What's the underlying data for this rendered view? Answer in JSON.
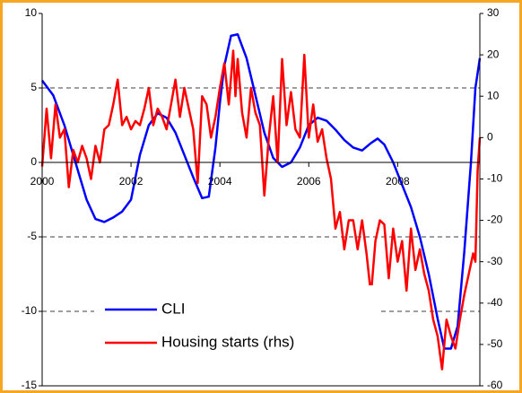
{
  "chart_data": {
    "type": "line",
    "xlim": [
      2000,
      2009.85
    ],
    "xticks": [
      2000,
      2002,
      2004,
      2006,
      2008
    ],
    "ylim": [
      -15,
      10
    ],
    "yticks": [
      -15,
      -10,
      -5,
      0,
      5,
      10
    ],
    "y2lim": [
      -60,
      30
    ],
    "y2ticks": [
      -60,
      -50,
      -40,
      -30,
      -20,
      -10,
      0,
      10,
      20,
      30
    ],
    "grid": true,
    "legend": "lower left",
    "series": [
      {
        "name": "CLI",
        "color": "#0000ff",
        "axis": "y",
        "x": [
          2000.0,
          2000.25,
          2000.5,
          2000.75,
          2001.0,
          2001.2,
          2001.4,
          2001.6,
          2001.8,
          2002.0,
          2002.2,
          2002.4,
          2002.6,
          2002.8,
          2003.0,
          2003.2,
          2003.4,
          2003.6,
          2003.75,
          2003.9,
          2004.0,
          2004.1,
          2004.25,
          2004.4,
          2004.6,
          2004.8,
          2005.0,
          2005.2,
          2005.4,
          2005.6,
          2005.8,
          2006.0,
          2006.2,
          2006.4,
          2006.6,
          2006.8,
          2007.0,
          2007.2,
          2007.4,
          2007.55,
          2007.7,
          2007.9,
          2008.1,
          2008.3,
          2008.5,
          2008.7,
          2008.9,
          2009.05,
          2009.2,
          2009.35,
          2009.5,
          2009.65,
          2009.75,
          2009.85
        ],
        "values": [
          5.5,
          4.5,
          2.5,
          0,
          -2.5,
          -3.8,
          -4,
          -3.7,
          -3.3,
          -2.5,
          0.5,
          2.5,
          3.3,
          3,
          2,
          0.5,
          -1,
          -2.4,
          -2.3,
          1,
          4,
          6.5,
          8.5,
          8.6,
          7,
          4.5,
          2,
          0.3,
          -0.3,
          0,
          1,
          2.5,
          3,
          2.8,
          2.2,
          1.5,
          1,
          0.8,
          1.3,
          1.6,
          1.2,
          0,
          -1.5,
          -3,
          -5,
          -7.5,
          -10.5,
          -12.5,
          -12.5,
          -11,
          -6,
          0,
          5,
          7
        ]
      },
      {
        "name": "Housing starts (rhs)",
        "color": "#ff0000",
        "axis": "y2",
        "x": [
          2000.0,
          2000.1,
          2000.2,
          2000.3,
          2000.4,
          2000.5,
          2000.6,
          2000.7,
          2000.8,
          2000.9,
          2001.0,
          2001.1,
          2001.2,
          2001.3,
          2001.4,
          2001.5,
          2001.6,
          2001.7,
          2001.8,
          2001.9,
          2002.0,
          2002.1,
          2002.2,
          2002.3,
          2002.4,
          2002.5,
          2002.6,
          2002.7,
          2002.8,
          2002.9,
          2003.0,
          2003.1,
          2003.2,
          2003.3,
          2003.4,
          2003.5,
          2003.6,
          2003.7,
          2003.8,
          2003.9,
          2004.0,
          2004.1,
          2004.2,
          2004.3,
          2004.35,
          2004.4,
          2004.5,
          2004.6,
          2004.7,
          2004.8,
          2004.9,
          2005.0,
          2005.1,
          2005.2,
          2005.3,
          2005.4,
          2005.5,
          2005.6,
          2005.7,
          2005.8,
          2005.9,
          2006.0,
          2006.1,
          2006.2,
          2006.3,
          2006.4,
          2006.5,
          2006.6,
          2006.7,
          2006.8,
          2006.9,
          2007.0,
          2007.1,
          2007.2,
          2007.3,
          2007.4,
          2007.5,
          2007.6,
          2007.7,
          2007.8,
          2007.9,
          2008.0,
          2008.1,
          2008.2,
          2008.3,
          2008.4,
          2008.5,
          2008.6,
          2008.7,
          2008.8,
          2008.9,
          2009.0,
          2009.1,
          2009.2,
          2009.3,
          2009.4,
          2009.5,
          2009.6,
          2009.7,
          2009.75,
          2009.8,
          2009.85
        ],
        "values": [
          -7,
          7,
          -5,
          8,
          0,
          2,
          -12,
          -3,
          -6,
          -2,
          -5,
          -10,
          -2,
          -6,
          2,
          3,
          8,
          14,
          3,
          5,
          2,
          4,
          3,
          7,
          12,
          3,
          7,
          5,
          2,
          8,
          14,
          5,
          12,
          7,
          2,
          -11,
          10,
          8,
          0,
          5,
          12,
          18,
          8,
          21,
          10,
          19,
          6,
          0,
          12,
          6,
          3,
          -14,
          0,
          10,
          -6,
          19,
          3,
          11,
          2,
          0,
          20,
          0,
          8,
          -1,
          2,
          -5,
          -10,
          -22,
          -18,
          -27,
          -20,
          -20,
          -27,
          -20,
          -28,
          -38,
          -25,
          -20,
          -21,
          -34,
          -22,
          -30,
          -25,
          -37,
          -22,
          -32,
          -27,
          -33,
          -37,
          -44,
          -48,
          -56,
          -44,
          -48,
          -51,
          -44,
          -38,
          -33,
          -28,
          -30,
          -8,
          0
        ]
      }
    ]
  }
}
